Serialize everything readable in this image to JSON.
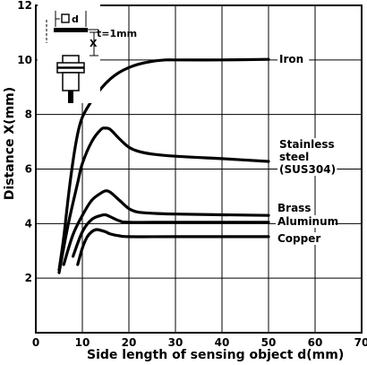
{
  "chart_data": {
    "type": "line",
    "xlabel": "Side length of sensing object d(mm)",
    "ylabel": "Distance X(mm)",
    "xlim": [
      0,
      70
    ],
    "ylim": [
      0,
      12
    ],
    "x_ticks": [
      "0",
      "10",
      "20",
      "30",
      "40",
      "50",
      "60",
      "70"
    ],
    "y_ticks": [
      "2",
      "4",
      "6",
      "8",
      "10",
      "12"
    ],
    "grid": true,
    "series": [
      {
        "name": "Iron",
        "label_lines": [
          "Iron"
        ],
        "points": [
          [
            5,
            2.3
          ],
          [
            6,
            3.5
          ],
          [
            7,
            5.0
          ],
          [
            8,
            6.3
          ],
          [
            9,
            7.3
          ],
          [
            10,
            7.9
          ],
          [
            12,
            8.5
          ],
          [
            14,
            8.95
          ],
          [
            16,
            9.3
          ],
          [
            18,
            9.55
          ],
          [
            20,
            9.72
          ],
          [
            22,
            9.84
          ],
          [
            25,
            9.95
          ],
          [
            28,
            10.0
          ],
          [
            30,
            10.0
          ],
          [
            40,
            10.0
          ],
          [
            50,
            10.02
          ]
        ]
      },
      {
        "name": "Stainless steel (SUS304)",
        "label_lines": [
          "Stainless",
          "steel",
          "(SUS304)"
        ],
        "points": [
          [
            5,
            2.2
          ],
          [
            7,
            4.0
          ],
          [
            9,
            5.5
          ],
          [
            10,
            6.2
          ],
          [
            12,
            7.0
          ],
          [
            14,
            7.45
          ],
          [
            15,
            7.5
          ],
          [
            16,
            7.45
          ],
          [
            18,
            7.1
          ],
          [
            20,
            6.8
          ],
          [
            22,
            6.65
          ],
          [
            25,
            6.55
          ],
          [
            30,
            6.47
          ],
          [
            40,
            6.38
          ],
          [
            50,
            6.28
          ]
        ]
      },
      {
        "name": "Brass",
        "label_lines": [
          "Brass"
        ],
        "points": [
          [
            6,
            2.5
          ],
          [
            8,
            3.6
          ],
          [
            10,
            4.3
          ],
          [
            12,
            4.85
          ],
          [
            14,
            5.12
          ],
          [
            15,
            5.2
          ],
          [
            16,
            5.15
          ],
          [
            18,
            4.85
          ],
          [
            20,
            4.55
          ],
          [
            22,
            4.42
          ],
          [
            25,
            4.38
          ],
          [
            30,
            4.35
          ],
          [
            50,
            4.3
          ]
        ]
      },
      {
        "name": "Aluminum",
        "label_lines": [
          "Aluminum"
        ],
        "points": [
          [
            8,
            2.8
          ],
          [
            10,
            3.7
          ],
          [
            12,
            4.15
          ],
          [
            14,
            4.3
          ],
          [
            15,
            4.32
          ],
          [
            16,
            4.25
          ],
          [
            18,
            4.1
          ],
          [
            20,
            4.05
          ],
          [
            30,
            4.05
          ],
          [
            50,
            4.05
          ]
        ]
      },
      {
        "name": "Copper",
        "label_lines": [
          "Copper"
        ],
        "points": [
          [
            9,
            2.5
          ],
          [
            10,
            3.1
          ],
          [
            11,
            3.5
          ],
          [
            12,
            3.7
          ],
          [
            13,
            3.78
          ],
          [
            14,
            3.75
          ],
          [
            15,
            3.7
          ],
          [
            16,
            3.62
          ],
          [
            18,
            3.55
          ],
          [
            20,
            3.52
          ],
          [
            30,
            3.52
          ],
          [
            50,
            3.52
          ]
        ]
      }
    ]
  },
  "inset": {
    "d_label": "d",
    "t_label": "t=1mm",
    "x_label": "X"
  }
}
